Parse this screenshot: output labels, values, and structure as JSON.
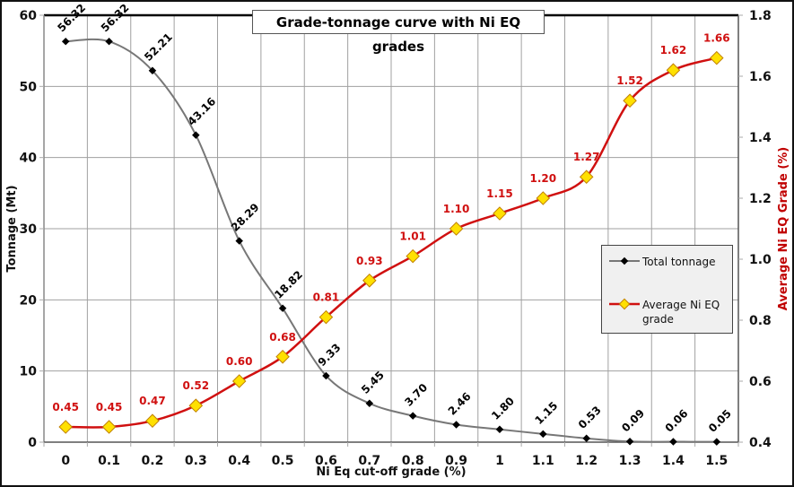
{
  "chart_data": {
    "type": "line",
    "title": "Grade-tonnage curve with Ni EQ grades",
    "xlabel": "Ni Eq cut-off grade (%)",
    "ylabel": "Tonnage (Mt)",
    "y2label": "Average Ni EQ Grade (%)",
    "categories": [
      "0",
      "0.1",
      "0.2",
      "0.3",
      "0.4",
      "0.5",
      "0.6",
      "0.7",
      "0.8",
      "0.9",
      "1",
      "1.1",
      "1.2",
      "1.3",
      "1.4",
      "1.5"
    ],
    "ylim": [
      0,
      60
    ],
    "yticks": [
      "0",
      "10",
      "20",
      "30",
      "40",
      "50",
      "60"
    ],
    "y2lim": [
      0.4,
      1.8
    ],
    "y2ticks": [
      "0.4",
      "0.6",
      "0.8",
      "1.0",
      "1.2",
      "1.4",
      "1.6",
      "1.8"
    ],
    "grid": true,
    "legend_position": "right-middle",
    "series": [
      {
        "name": "Total tonnage",
        "axis": "left",
        "color": "#777777",
        "marker_color": "#000000",
        "values": [
          56.32,
          56.32,
          52.21,
          43.16,
          28.29,
          18.82,
          9.33,
          5.45,
          3.7,
          2.46,
          1.8,
          1.15,
          0.53,
          0.09,
          0.06,
          0.05
        ],
        "labels": [
          "56.32",
          "56.32",
          "52.21",
          "43.16",
          "28.29",
          "18.82",
          "9.33",
          "5.45",
          "3.70",
          "2.46",
          "1.80",
          "1.15",
          "0.53",
          "0.09",
          "0.06",
          "0.05"
        ]
      },
      {
        "name": "Average Ni EQ grade",
        "axis": "right",
        "color": "#d01010",
        "marker_color": "#ffe000",
        "values": [
          0.45,
          0.45,
          0.47,
          0.52,
          0.6,
          0.68,
          0.81,
          0.93,
          1.01,
          1.1,
          1.15,
          1.2,
          1.27,
          1.52,
          1.62,
          1.66
        ],
        "labels": [
          "0.45",
          "0.45",
          "0.47",
          "0.52",
          "0.60",
          "0.68",
          "0.81",
          "0.93",
          "1.01",
          "1.10",
          "1.15",
          "1.20",
          "1.27",
          "1.52",
          "1.62",
          "1.66"
        ]
      }
    ]
  },
  "legend": {
    "items": [
      "Total tonnage",
      "Average Ni EQ grade"
    ]
  },
  "colors": {
    "axis_title_right": "#c00000",
    "grid": "#a0a0a0",
    "legend_bg": "#f0f0f0"
  }
}
